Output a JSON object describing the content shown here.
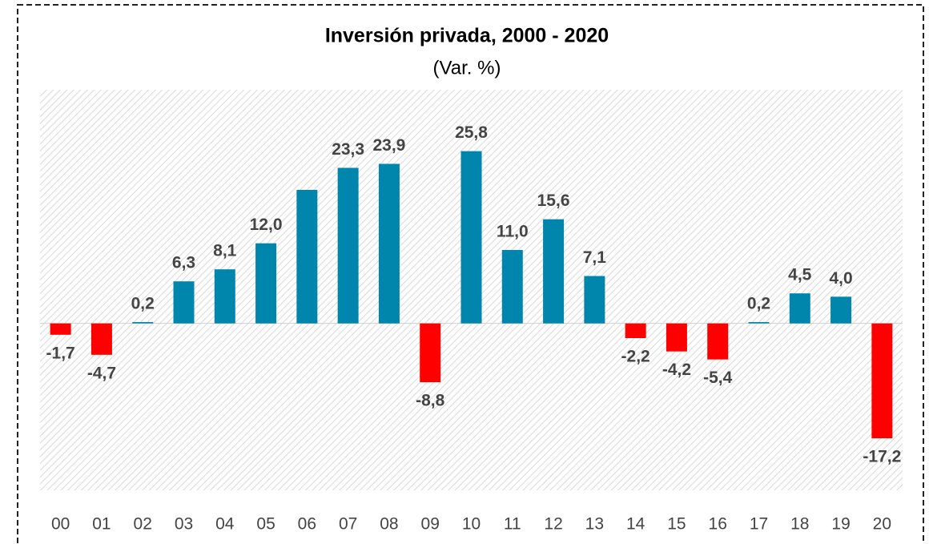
{
  "chart_data": {
    "type": "bar",
    "title": "Inversión privada, 2000 - 2020",
    "subtitle": "(Var. %)",
    "categories": [
      "00",
      "01",
      "02",
      "03",
      "04",
      "05",
      "06",
      "07",
      "08",
      "09",
      "10",
      "11",
      "12",
      "13",
      "14",
      "15",
      "16",
      "17",
      "18",
      "19",
      "20"
    ],
    "values": [
      -1.7,
      -4.7,
      0.2,
      6.3,
      8.1,
      12.0,
      20.0,
      23.3,
      23.9,
      -8.8,
      25.8,
      11.0,
      15.6,
      7.1,
      -2.2,
      -4.2,
      -5.4,
      0.2,
      4.5,
      4.0,
      -17.2
    ],
    "value_labels": [
      "-1,7",
      "-4,7",
      "0,2",
      "6,3",
      "8,1",
      "12,0",
      null,
      "23,3",
      "23,9",
      "-8,8",
      "25,8",
      "11,0",
      "15,6",
      "7,1",
      "-2,2",
      "-4,2",
      "-5,4",
      "0,2",
      "4,5",
      "4,0",
      "-17,2"
    ],
    "color": "#0086ad",
    "negative_color": "#ff0000",
    "ylim": [
      -25,
      35
    ]
  }
}
